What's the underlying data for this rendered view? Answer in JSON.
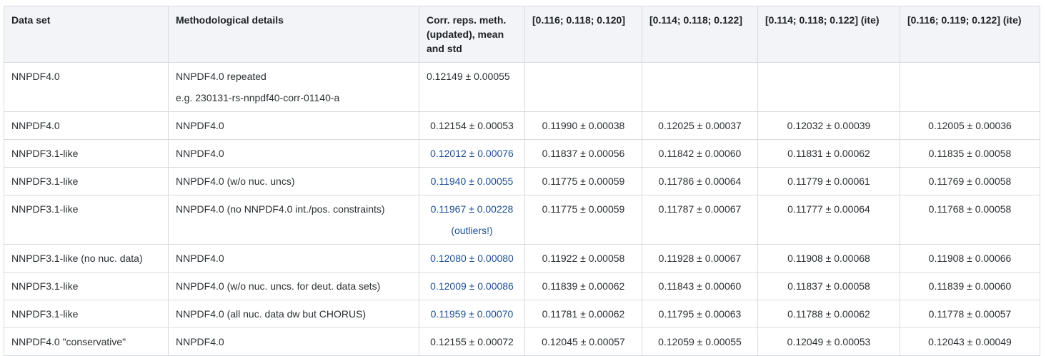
{
  "table": {
    "headers": [
      "Data set",
      "Methodological details",
      "Corr. reps. meth. (updated), mean and std",
      "[0.116; 0.118; 0.120]",
      "[0.114; 0.118; 0.122]",
      "[0.114; 0.118; 0.122] (ite)",
      "[0.116; 0.119; 0.122] (ite)"
    ],
    "rows": [
      {
        "dataset": "NNPDF4.0",
        "method": "NNPDF4.0 repeated",
        "method_note": "e.g. 230131-rs-nnpdf40-corr-01140-a",
        "corr": "0.12149 ± 0.00055",
        "corr_note": "",
        "v1": "",
        "v2": "",
        "v3": "",
        "v4": ""
      },
      {
        "dataset": "NNPDF4.0",
        "method": "NNPDF4.0",
        "method_note": "",
        "corr": "0.12154 ± 0.00053",
        "corr_note": "",
        "v1": "0.11990 ± 0.00038",
        "v2": "0.12025 ± 0.00037",
        "v3": "0.12032 ± 0.00039",
        "v4": "0.12005 ± 0.00036"
      },
      {
        "dataset": "NNPDF3.1-like",
        "method": "NNPDF4.0",
        "method_note": "",
        "corr": "0.12012 ± 0.00076",
        "corr_note": "",
        "v1": "0.11837 ± 0.00056",
        "v2": "0.11842 ± 0.00060",
        "v3": "0.11831 ± 0.00062",
        "v4": "0.11835 ± 0.00058"
      },
      {
        "dataset": "NNPDF3.1-like",
        "method": "NNPDF4.0 (w/o nuc. uncs)",
        "method_note": "",
        "corr": "0.11940 ± 0.00055",
        "corr_note": "",
        "v1": "0.11775 ± 0.00059",
        "v2": "0.11786 ± 0.00064",
        "v3": "0.11779 ± 0.00061",
        "v4": "0.11769 ± 0.00058"
      },
      {
        "dataset": "NNPDF3.1-like",
        "method": "NNPDF4.0 (no NNPDF4.0 int./pos. constraints)",
        "method_note": "",
        "corr": "0.11967 ± 0.00228",
        "corr_note": "(outliers!)",
        "v1": "0.11775 ± 0.00059",
        "v2": "0.11787 ± 0.00067",
        "v3": "0.11777 ± 0.00064",
        "v4": "0.11768 ± 0.00058"
      },
      {
        "dataset": "NNPDF3.1-like (no nuc. data)",
        "method": "NNPDF4.0",
        "method_note": "",
        "corr": "0.12080 ± 0.00080",
        "corr_note": "",
        "v1": "0.11922 ± 0.00058",
        "v2": "0.11928 ± 0.00067",
        "v3": "0.11908 ± 0.00068",
        "v4": "0.11908 ± 0.00066"
      },
      {
        "dataset": "NNPDF3.1-like",
        "method": "NNPDF4.0 (w/o nuc. uncs. for deut. data sets)",
        "method_note": "",
        "corr": "0.12009 ± 0.00086",
        "corr_note": "",
        "v1": "0.11839 ± 0.00062",
        "v2": "0.11843 ± 0.00060",
        "v3": "0.11837 ± 0.00058",
        "v4": "0.11839 ± 0.00060"
      },
      {
        "dataset": "NNPDF3.1-like",
        "method": "NNPDF4.0 (all nuc. data dw but CHORUS)",
        "method_note": "",
        "corr": "0.11959 ± 0.00070",
        "corr_note": "",
        "v1": "0.11781 ± 0.00062",
        "v2": "0.11795 ± 0.00063",
        "v3": "0.11788 ± 0.00062",
        "v4": "0.11778 ± 0.00057"
      },
      {
        "dataset": "NNPDF4.0 \"conservative\"",
        "method": "NNPDF4.0",
        "method_note": "",
        "corr": "0.12155 ± 0.00072",
        "corr_note": "",
        "v1": "0.12045 ± 0.00057",
        "v2": "0.12059 ± 0.00055",
        "v3": "0.12049 ± 0.00053",
        "v4": "0.12043 ± 0.00049"
      }
    ]
  },
  "colors": {
    "header_bg": "#f2f4f7",
    "border": "#d7dbe0",
    "link_text": "#1d4f91"
  }
}
